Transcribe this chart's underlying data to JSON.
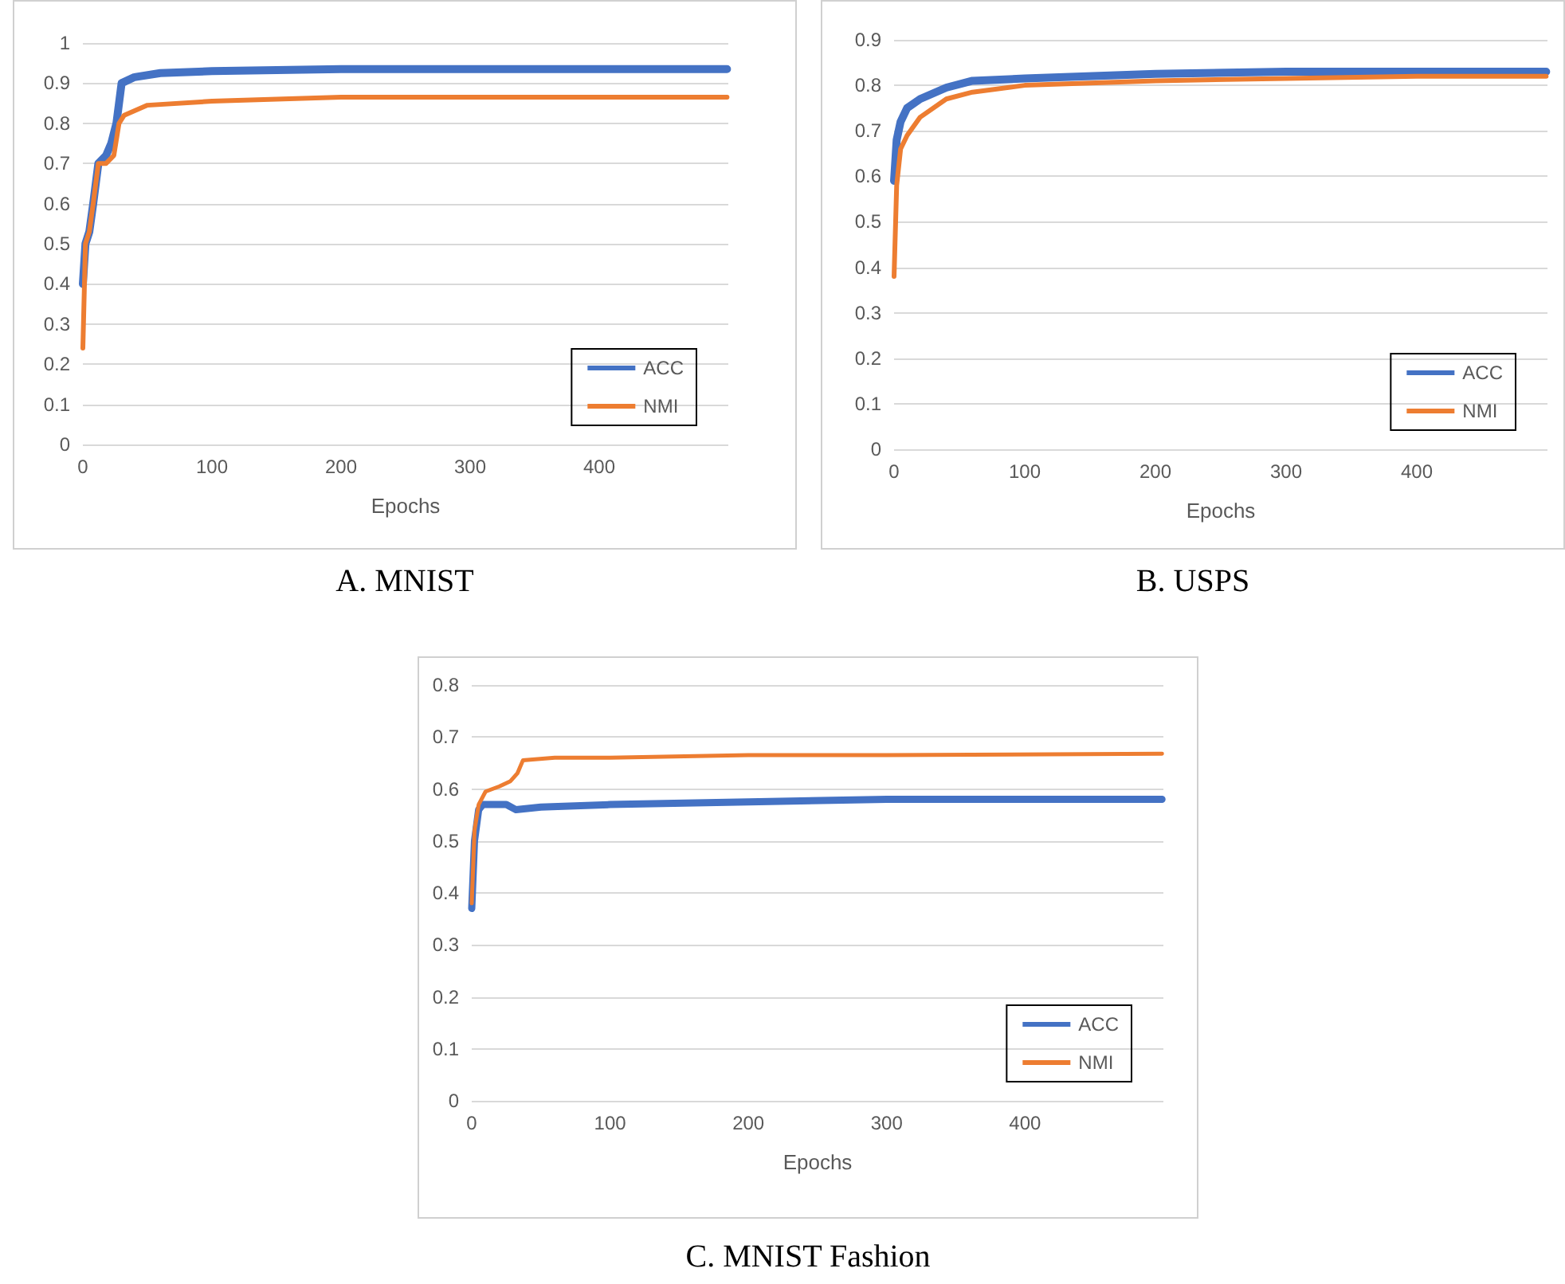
{
  "chart_data": [
    {
      "type": "line",
      "title": "A. MNIST",
      "xlabel": "Epochs",
      "xlim": [
        0,
        500
      ],
      "xticks": [
        0,
        100,
        200,
        300,
        400
      ],
      "ylim": [
        0,
        1
      ],
      "yticks": [
        0,
        0.1,
        0.2,
        0.3,
        0.4,
        0.5,
        0.6,
        0.7,
        0.8,
        0.9,
        1
      ],
      "grid": "y",
      "legend": "bottom right",
      "marker": "none",
      "line_style": "solid",
      "series": [
        {
          "name": "ACC",
          "color": "#4472c4",
          "x": [
            0,
            2,
            5,
            8,
            12,
            18,
            22,
            26,
            30,
            40,
            60,
            100,
            200,
            300,
            499
          ],
          "values": [
            0.4,
            0.5,
            0.53,
            0.6,
            0.7,
            0.72,
            0.75,
            0.8,
            0.9,
            0.915,
            0.925,
            0.93,
            0.935,
            0.935,
            0.935
          ]
        },
        {
          "name": "NMI",
          "color": "#ed7d31",
          "x": [
            0,
            2,
            5,
            8,
            12,
            18,
            24,
            28,
            32,
            50,
            100,
            200,
            300,
            499
          ],
          "values": [
            0.24,
            0.5,
            0.53,
            0.6,
            0.7,
            0.7,
            0.72,
            0.8,
            0.82,
            0.845,
            0.855,
            0.865,
            0.865,
            0.865
          ]
        }
      ]
    },
    {
      "type": "line",
      "title": "B. USPS",
      "xlabel": "Epochs",
      "xlim": [
        0,
        500
      ],
      "xticks": [
        0,
        100,
        200,
        300,
        400
      ],
      "ylim": [
        0,
        0.9
      ],
      "yticks": [
        0,
        0.1,
        0.2,
        0.3,
        0.4,
        0.5,
        0.6,
        0.7,
        0.8,
        0.9
      ],
      "grid": "y",
      "legend": "bottom right",
      "marker": "none",
      "line_style": "solid",
      "series": [
        {
          "name": "ACC",
          "color": "#4472c4",
          "x": [
            0,
            2,
            5,
            10,
            20,
            40,
            60,
            100,
            200,
            300,
            400,
            499
          ],
          "values": [
            0.59,
            0.68,
            0.72,
            0.75,
            0.77,
            0.795,
            0.81,
            0.815,
            0.825,
            0.83,
            0.83,
            0.83
          ]
        },
        {
          "name": "NMI",
          "color": "#ed7d31",
          "x": [
            0,
            2,
            5,
            10,
            20,
            40,
            60,
            100,
            200,
            300,
            400,
            499
          ],
          "values": [
            0.38,
            0.58,
            0.66,
            0.69,
            0.73,
            0.77,
            0.785,
            0.8,
            0.81,
            0.815,
            0.82,
            0.82
          ]
        }
      ]
    },
    {
      "type": "line",
      "title": "C. MNIST Fashion",
      "xlabel": "Epochs",
      "xlim": [
        0,
        500
      ],
      "xticks": [
        0,
        100,
        200,
        300,
        400
      ],
      "ylim": [
        0,
        0.8
      ],
      "yticks": [
        0,
        0.1,
        0.2,
        0.3,
        0.4,
        0.5,
        0.6,
        0.7,
        0.8
      ],
      "grid": "y",
      "legend": "bottom right",
      "marker": "none",
      "line_style": "solid",
      "series": [
        {
          "name": "ACC",
          "color": "#4472c4",
          "x": [
            0,
            2,
            5,
            8,
            25,
            32,
            50,
            100,
            200,
            300,
            499
          ],
          "values": [
            0.37,
            0.5,
            0.56,
            0.57,
            0.57,
            0.56,
            0.565,
            0.57,
            0.575,
            0.58,
            0.58
          ]
        },
        {
          "name": "NMI",
          "color": "#ed7d31",
          "x": [
            0,
            2,
            5,
            10,
            20,
            28,
            33,
            37,
            60,
            100,
            200,
            300,
            499
          ],
          "values": [
            0.38,
            0.52,
            0.57,
            0.595,
            0.605,
            0.615,
            0.63,
            0.655,
            0.66,
            0.66,
            0.665,
            0.665,
            0.668
          ]
        }
      ]
    }
  ]
}
